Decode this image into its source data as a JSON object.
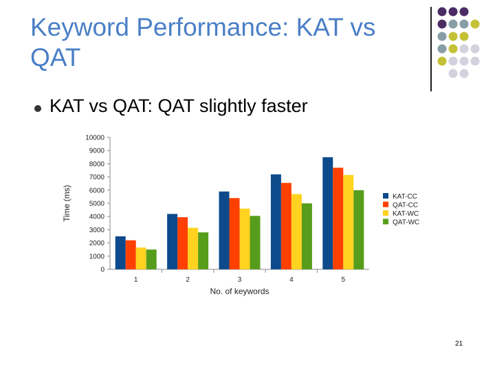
{
  "slide": {
    "title": "Keyword Performance: KAT vs QAT",
    "bullet": "KAT vs QAT: QAT slightly faster",
    "page_number": "21"
  },
  "decoration": {
    "dot_colors": [
      "#4b2c64",
      "#879ea6",
      "#c4c137",
      "#d3d1dd"
    ]
  },
  "chart_data": {
    "type": "bar",
    "title": "",
    "xlabel": "No. of keywords",
    "ylabel": "Time (ms)",
    "ylim": [
      0,
      10000
    ],
    "yticks": [
      0,
      1000,
      2000,
      3000,
      4000,
      5000,
      6000,
      7000,
      8000,
      9000,
      10000
    ],
    "grid": false,
    "legend_position": "right",
    "categories": [
      "1",
      "2",
      "3",
      "4",
      "5"
    ],
    "series": [
      {
        "name": "KAT-CC",
        "color": "#0d4a8c",
        "values": [
          2500,
          4200,
          5900,
          7200,
          8500
        ]
      },
      {
        "name": "QAT-CC",
        "color": "#ff4000",
        "values": [
          2200,
          3950,
          5400,
          6550,
          7700
        ]
      },
      {
        "name": "KAT-WC",
        "color": "#ffd320",
        "values": [
          1650,
          3150,
          4600,
          5700,
          7150
        ]
      },
      {
        "name": "QAT-WC",
        "color": "#579d1c",
        "values": [
          1500,
          2800,
          4050,
          5000,
          6000
        ]
      }
    ]
  }
}
